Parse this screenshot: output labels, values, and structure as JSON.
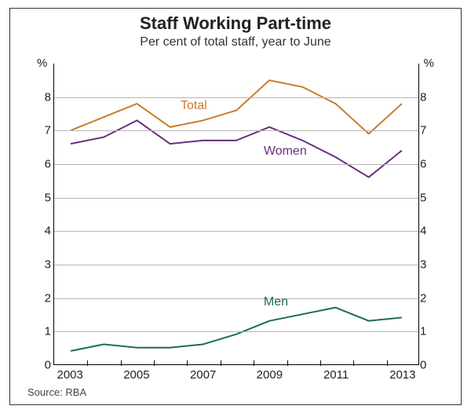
{
  "chart": {
    "type": "line",
    "title": "Staff Working Part-time",
    "subtitle": "Per cent of total staff, year to June",
    "title_fontsize": 22,
    "subtitle_fontsize": 16,
    "axis_fontsize": 15,
    "label_fontsize": 16,
    "background_color": "#ffffff",
    "frame_color": "#333333",
    "grid_color": "#b5b5b5",
    "axis_color": "#000000",
    "line_width": 2,
    "x": {
      "min": 2002.5,
      "max": 2013.5,
      "tick_step": 2,
      "ticks": [
        2003,
        2005,
        2007,
        2009,
        2011,
        2013
      ],
      "label": ""
    },
    "y": {
      "min": 0,
      "max": 9,
      "tick_step": 1,
      "ticks": [
        0,
        1,
        2,
        3,
        4,
        5,
        6,
        7,
        8
      ],
      "unit_left": "%",
      "unit_right": "%"
    },
    "series": [
      {
        "name": "Total",
        "color": "#cb7b2b",
        "label_x": 2006.3,
        "label_y": 7.7,
        "x": [
          2003,
          2004,
          2005,
          2006,
          2007,
          2008,
          2009,
          2010,
          2011,
          2012,
          2013
        ],
        "y": [
          7.0,
          7.4,
          7.8,
          7.1,
          7.3,
          7.6,
          8.5,
          8.3,
          7.8,
          6.9,
          7.8
        ]
      },
      {
        "name": "Women",
        "color": "#6a2d82",
        "label_x": 2008.8,
        "label_y": 6.35,
        "x": [
          2003,
          2004,
          2005,
          2006,
          2007,
          2008,
          2009,
          2010,
          2011,
          2012,
          2013
        ],
        "y": [
          6.6,
          6.8,
          7.3,
          6.6,
          6.7,
          6.7,
          7.1,
          6.7,
          6.2,
          5.6,
          6.4
        ]
      },
      {
        "name": "Men",
        "color": "#1f6e4a",
        "label_x": 2008.8,
        "label_y": 1.85,
        "x": [
          2003,
          2004,
          2005,
          2006,
          2007,
          2008,
          2009,
          2010,
          2011,
          2012,
          2013
        ],
        "y": [
          0.4,
          0.6,
          0.5,
          0.5,
          0.6,
          0.9,
          1.3,
          1.5,
          1.7,
          1.3,
          1.4
        ]
      }
    ],
    "source": "Source: RBA"
  }
}
